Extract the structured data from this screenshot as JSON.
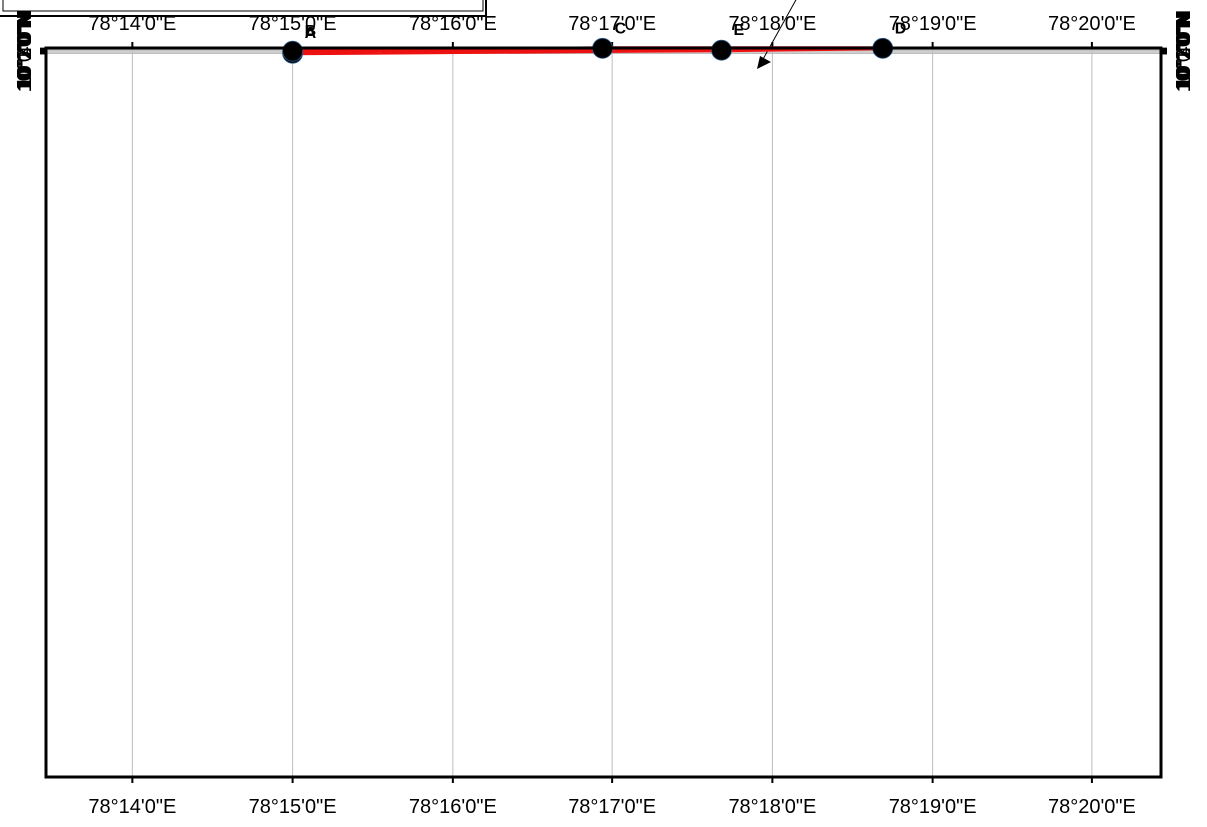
{
  "map": {
    "extent": {
      "lon_min": 78.2243,
      "lon_max": 78.3405,
      "lat_min": -0.0034,
      "lat_max": 10.0753
    },
    "grid": true,
    "x_ticks": [
      {
        "value": 78.2333,
        "label": "78°14'0\"E"
      },
      {
        "value": 78.25,
        "label": "78°15'0\"E"
      },
      {
        "value": 78.2667,
        "label": "78°16'0\"E"
      },
      {
        "value": 78.2833,
        "label": "78°17'0\"E"
      },
      {
        "value": 78.3,
        "label": "78°18'0\"E"
      },
      {
        "value": 78.3167,
        "label": "78°19'0\"E"
      },
      {
        "value": 78.3333,
        "label": "78°20'0\"E"
      }
    ],
    "y_ticks": [
      {
        "value": 10.0,
        "label": "10°0'0\"N"
      },
      {
        "value": 10.0167,
        "label": "10°1'0\"N"
      },
      {
        "value": 10.0333,
        "label": "10°2'0\"N"
      },
      {
        "value": 10.05,
        "label": "10°3'0\"N"
      },
      {
        "value": 10.0667,
        "label": "10°4'0\"N"
      }
    ],
    "points": [
      {
        "label": "A",
        "lon": 78.25,
        "lat": 10.0028
      },
      {
        "label": "B",
        "lon": 78.25,
        "lat": 10.0315
      },
      {
        "label": "C",
        "lon": 78.2823,
        "lat": 10.0709
      },
      {
        "label": "D",
        "lon": 78.3115,
        "lat": 10.0709
      },
      {
        "label": "E",
        "lon": 78.2947,
        "lat": 10.0452
      }
    ],
    "route_order": [
      "A",
      "B",
      "C",
      "D",
      "E",
      "A"
    ],
    "colors": {
      "route": "#ee1111",
      "point": "#000000",
      "frame": "#000000",
      "grid": "#bdbdbd"
    }
  }
}
